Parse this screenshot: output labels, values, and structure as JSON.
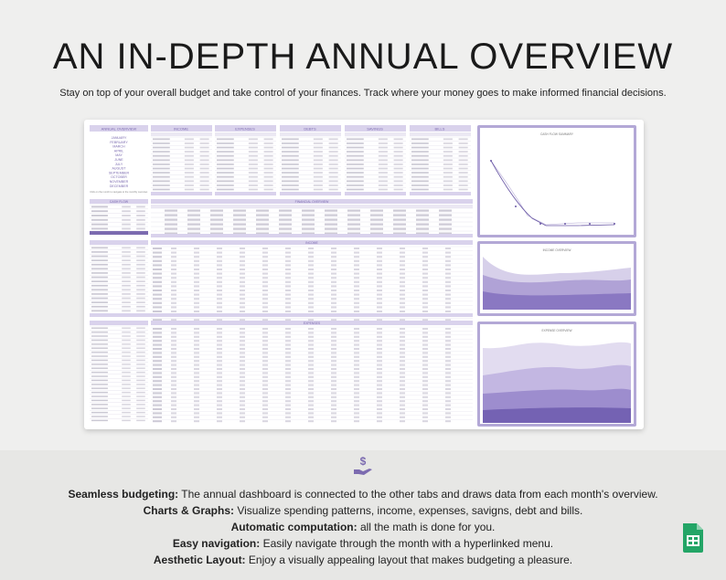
{
  "header": {
    "title": "AN IN-DEPTH ANNUAL OVERVIEW",
    "subtitle": "Stay on top of your overall budget and take control of your finances. Track where your money goes to make informed financial decisions."
  },
  "sheet": {
    "annual_overview_title": "ANNUAL OVERVIEW",
    "months": [
      "JANUARY",
      "FEBRUARY",
      "MARCH",
      "APRIL",
      "MAY",
      "JUNE",
      "JULY",
      "AUGUST",
      "SEPTEMBER",
      "OCTOBER",
      "NOVEMBER",
      "DECEMBER"
    ],
    "nav_hint": "Click on the month to navigate to the monthly overview.",
    "panels": [
      "INCOME",
      "EXPENSES",
      "DEBTS",
      "SAVINGS",
      "BILLS"
    ],
    "sections": [
      "CASH FLOW",
      "FINANCIAL OVERVIEW",
      "INCOME",
      "EXPENSES"
    ],
    "charts": [
      "CASH FLOW SUMMARY",
      "INCOME OVERVIEW",
      "EXPENSE OVERVIEW"
    ],
    "accent": "#7c6bb0",
    "accent_light": "#d9d2ec"
  },
  "features": [
    {
      "label": "Seamless budgeting:",
      "text": " The annual dashboard is connected to the other tabs and draws data from each month's overview."
    },
    {
      "label": "Charts & Graphs:",
      "text": " Visualize spending patterns, income, expenses, savigns, debt and bills."
    },
    {
      "label": "Automatic computation:",
      "text": " all the math is done for you."
    },
    {
      "label": "Easy navigation:",
      "text": " Easily navigate through the month with a hyperlinked menu."
    },
    {
      "label": "Aesthetic Layout:",
      "text": " Enjoy a visually appealing layout that makes budgeting a pleasure."
    }
  ],
  "icons": {
    "money_hand": "money-hand-icon",
    "sheets": "google-sheets-icon"
  }
}
